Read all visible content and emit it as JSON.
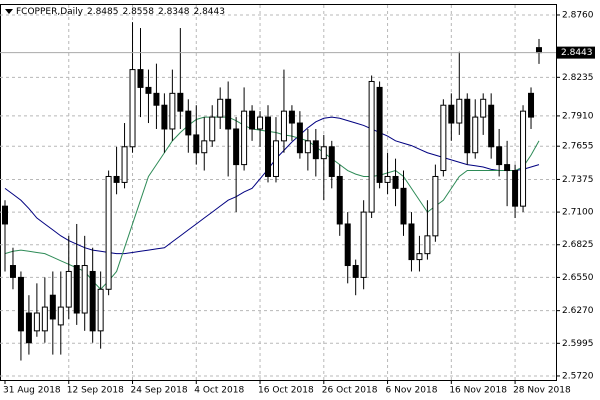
{
  "chart_data": {
    "type": "candlestick",
    "symbol": "FCOPPER,Daily",
    "categories": [
      "31 Aug 2018",
      null,
      null,
      null,
      null,
      null,
      null,
      null,
      "12 Sep 2018",
      null,
      null,
      null,
      null,
      null,
      null,
      null,
      "24 Sep 2018",
      null,
      null,
      null,
      null,
      null,
      null,
      null,
      "4 Oct 2018",
      null,
      null,
      null,
      null,
      null,
      null,
      null,
      "16 Oct 2018",
      null,
      null,
      null,
      null,
      null,
      null,
      null,
      "26 Oct 2018",
      null,
      null,
      null,
      null,
      null,
      null,
      null,
      "6 Nov 2018",
      null,
      null,
      null,
      null,
      null,
      null,
      null,
      "16 Nov 2018",
      null,
      null,
      null,
      null,
      null,
      null,
      null,
      "28 Nov 2018",
      null,
      null,
      null
    ],
    "open": [
      2.715,
      2.665,
      2.655,
      2.625,
      2.61,
      2.61,
      2.64,
      2.615,
      2.63,
      2.665,
      2.625,
      2.66,
      2.61,
      2.645,
      2.74,
      2.735,
      2.765,
      2.83,
      2.815,
      2.81,
      2.8,
      2.78,
      2.81,
      2.795,
      2.775,
      2.76,
      2.77,
      2.79,
      2.805,
      2.78,
      2.75,
      2.795,
      2.78,
      2.79,
      2.74,
      2.77,
      2.795,
      2.785,
      2.76,
      2.77,
      2.755,
      2.765,
      2.74,
      2.7,
      2.665,
      2.655,
      2.71,
      2.815,
      2.735,
      2.74,
      2.73,
      2.7,
      2.67,
      2.675,
      2.69,
      2.745,
      2.8,
      2.785,
      2.805,
      2.76,
      2.79,
      2.8,
      2.765,
      2.75,
      2.745,
      2.715,
      2.81,
      2.8485
    ],
    "high": [
      2.72,
      2.68,
      2.66,
      2.64,
      2.65,
      2.655,
      2.66,
      2.66,
      2.69,
      2.7,
      2.69,
      2.68,
      2.66,
      2.745,
      2.765,
      2.785,
      2.87,
      2.865,
      2.83,
      2.835,
      2.81,
      2.83,
      2.865,
      2.805,
      2.8,
      2.79,
      2.8,
      2.815,
      2.82,
      2.79,
      2.815,
      2.8,
      2.795,
      2.8,
      2.79,
      2.83,
      2.8,
      2.795,
      2.78,
      2.78,
      2.775,
      2.77,
      2.75,
      2.71,
      2.67,
      2.72,
      2.825,
      2.82,
      2.76,
      2.755,
      2.745,
      2.71,
      2.69,
      2.72,
      2.75,
      2.805,
      2.81,
      2.845,
      2.81,
      2.805,
      2.81,
      2.81,
      2.78,
      2.77,
      2.75,
      2.8,
      2.815,
      2.8558
    ],
    "low": [
      2.66,
      2.645,
      2.585,
      2.59,
      2.605,
      2.6,
      2.59,
      2.59,
      2.62,
      2.615,
      2.61,
      2.6,
      2.595,
      2.64,
      2.725,
      2.73,
      2.76,
      2.79,
      2.785,
      2.78,
      2.76,
      2.77,
      2.78,
      2.76,
      2.75,
      2.745,
      2.765,
      2.78,
      2.74,
      2.71,
      2.745,
      2.77,
      2.765,
      2.735,
      2.735,
      2.76,
      2.77,
      2.755,
      2.745,
      2.74,
      2.72,
      2.73,
      2.69,
      2.65,
      2.64,
      2.645,
      2.705,
      2.73,
      2.725,
      2.715,
      2.69,
      2.66,
      2.66,
      2.67,
      2.685,
      2.74,
      2.77,
      2.775,
      2.75,
      2.755,
      2.775,
      2.755,
      2.74,
      2.715,
      2.705,
      2.71,
      2.78,
      2.8348
    ],
    "close": [
      2.7,
      2.655,
      2.61,
      2.6,
      2.625,
      2.63,
      2.62,
      2.63,
      2.66,
      2.625,
      2.665,
      2.61,
      2.645,
      2.74,
      2.735,
      2.765,
      2.83,
      2.815,
      2.81,
      2.8,
      2.78,
      2.81,
      2.795,
      2.775,
      2.76,
      2.77,
      2.79,
      2.805,
      2.78,
      2.75,
      2.795,
      2.78,
      2.79,
      2.74,
      2.77,
      2.795,
      2.785,
      2.76,
      2.77,
      2.755,
      2.765,
      2.74,
      2.7,
      2.665,
      2.655,
      2.71,
      2.82,
      2.735,
      2.74,
      2.73,
      2.7,
      2.67,
      2.675,
      2.69,
      2.74,
      2.8,
      2.785,
      2.805,
      2.76,
      2.79,
      2.805,
      2.765,
      2.75,
      2.745,
      2.715,
      2.795,
      2.79,
      2.8443
    ],
    "series": [
      {
        "color": "#000080",
        "values": [
          2.73,
          2.725,
          2.72,
          2.713,
          2.705,
          2.7,
          2.695,
          2.69,
          2.686,
          2.683,
          2.68,
          2.678,
          2.677,
          2.676,
          2.675,
          2.675,
          2.676,
          2.677,
          2.678,
          2.679,
          2.68,
          2.685,
          2.69,
          2.695,
          2.7,
          2.705,
          2.71,
          2.715,
          2.72,
          2.723,
          2.727,
          2.73,
          2.738,
          2.746,
          2.755,
          2.762,
          2.769,
          2.775,
          2.781,
          2.786,
          2.789,
          2.79,
          2.789,
          2.787,
          2.785,
          2.783,
          2.78,
          2.777,
          2.774,
          2.77,
          2.768,
          2.766,
          2.763,
          2.76,
          2.758,
          2.756,
          2.754,
          2.752,
          2.75,
          2.749,
          2.748,
          2.746,
          2.745,
          2.745,
          2.745,
          2.746,
          2.748,
          2.75
        ]
      },
      {
        "color": "#2e8b57",
        "values": [
          2.675,
          2.677,
          2.678,
          2.677,
          2.676,
          2.675,
          2.672,
          2.669,
          2.666,
          2.663,
          2.66,
          2.652,
          2.645,
          2.652,
          2.66,
          2.68,
          2.7,
          2.72,
          2.74,
          2.75,
          2.76,
          2.77,
          2.777,
          2.783,
          2.788,
          2.79,
          2.79,
          2.79,
          2.79,
          2.787,
          2.783,
          2.78,
          2.779,
          2.778,
          2.777,
          2.775,
          2.774,
          2.772,
          2.77,
          2.765,
          2.76,
          2.755,
          2.75,
          2.745,
          2.742,
          2.74,
          2.74,
          2.741,
          2.743,
          2.745,
          2.74,
          2.73,
          2.72,
          2.71,
          2.715,
          2.72,
          2.73,
          2.74,
          2.745,
          2.745,
          2.745,
          2.745,
          2.745,
          2.745,
          2.745,
          2.748,
          2.758,
          2.77
        ]
      }
    ],
    "ylim": [
      2.5686,
      2.8844
    ],
    "yticks": [
      {
        "value": 2.876,
        "label": "2.8760"
      },
      {
        "value": 2.8235,
        "label": "2.8235"
      },
      {
        "value": 2.791,
        "label": "2.7910"
      },
      {
        "value": 2.7655,
        "label": "2.7655"
      },
      {
        "value": 2.7375,
        "label": "2.7375"
      },
      {
        "value": 2.71,
        "label": "2.7100"
      },
      {
        "value": 2.6825,
        "label": "2.6825"
      },
      {
        "value": 2.655,
        "label": "2.6550"
      },
      {
        "value": 2.627,
        "label": "2.6270"
      },
      {
        "value": 2.5995,
        "label": "2.5995"
      },
      {
        "value": 2.572,
        "label": "2.5720"
      }
    ],
    "grid": true
  }
}
